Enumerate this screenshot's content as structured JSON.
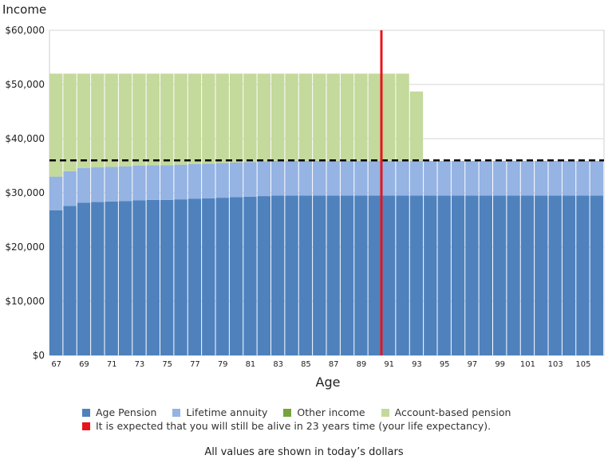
{
  "chart_data": {
    "type": "bar",
    "stacked": true,
    "title": "Income",
    "xlabel": "Age",
    "ylabel": "",
    "ylim": [
      0,
      60000
    ],
    "yticks": [
      "$0",
      "$10,000",
      "$20,000",
      "$30,000",
      "$40,000",
      "$50,000",
      "$60,000"
    ],
    "ytick_values": [
      0,
      10000,
      20000,
      30000,
      40000,
      50000,
      60000
    ],
    "grid": "horizontal",
    "x": [
      67,
      68,
      69,
      70,
      71,
      72,
      73,
      74,
      75,
      76,
      77,
      78,
      79,
      80,
      81,
      82,
      83,
      84,
      85,
      86,
      87,
      88,
      89,
      90,
      91,
      92,
      93,
      94,
      95,
      96,
      97,
      98,
      99,
      100,
      101,
      102,
      103,
      104,
      105,
      106
    ],
    "xtick_labels": [
      "67",
      "69",
      "71",
      "73",
      "75",
      "77",
      "79",
      "81",
      "83",
      "85",
      "87",
      "89",
      "91",
      "93",
      "95",
      "97",
      "99",
      "101",
      "103",
      "105"
    ],
    "xtick_values": [
      67,
      69,
      71,
      73,
      75,
      77,
      79,
      81,
      83,
      85,
      87,
      89,
      91,
      93,
      95,
      97,
      99,
      101,
      103,
      105
    ],
    "series": [
      {
        "name": "Age Pension",
        "color": "#4f81bd",
        "values": [
          26800,
          27600,
          28200,
          28300,
          28400,
          28500,
          28600,
          28700,
          28700,
          28800,
          28900,
          29000,
          29100,
          29200,
          29300,
          29400,
          29500,
          29500,
          29500,
          29500,
          29500,
          29500,
          29500,
          29500,
          29500,
          29500,
          29500,
          29500,
          29500,
          29500,
          29500,
          29500,
          29500,
          29500,
          29500,
          29500,
          29500,
          29500,
          29500,
          29500
        ]
      },
      {
        "name": "Lifetime annuity",
        "color": "#95b3e3",
        "values": [
          6200,
          6400,
          6400,
          6400,
          6400,
          6400,
          6400,
          6400,
          6400,
          6400,
          6400,
          6400,
          6400,
          6400,
          6400,
          6400,
          6400,
          6400,
          6400,
          6400,
          6400,
          6400,
          6400,
          6400,
          6400,
          6400,
          6400,
          6400,
          6400,
          6400,
          6400,
          6400,
          6400,
          6400,
          6400,
          6400,
          6400,
          6400,
          6400,
          6400
        ]
      },
      {
        "name": "Other income",
        "color": "#77a33c",
        "values": [
          0,
          0,
          0,
          0,
          0,
          0,
          0,
          0,
          0,
          0,
          0,
          0,
          0,
          0,
          0,
          0,
          0,
          0,
          0,
          0,
          0,
          0,
          0,
          0,
          0,
          0,
          0,
          0,
          0,
          0,
          0,
          0,
          0,
          0,
          0,
          0,
          0,
          0,
          0,
          0
        ]
      },
      {
        "name": "Account-based pension",
        "color": "#c4d99c",
        "values": [
          19000,
          18000,
          17400,
          17300,
          17200,
          17100,
          17000,
          16900,
          16900,
          16800,
          16700,
          16600,
          16500,
          16400,
          16300,
          16200,
          16100,
          16100,
          16100,
          16100,
          16100,
          16100,
          16100,
          16100,
          16100,
          16100,
          12800,
          0,
          0,
          0,
          0,
          0,
          0,
          0,
          0,
          0,
          0,
          0,
          0,
          0
        ]
      }
    ],
    "reference_line": {
      "type": "dashed",
      "value": 36000,
      "color": "#000000"
    },
    "life_expectancy_marker": {
      "x": 90,
      "color": "#e8141b",
      "label": "It is expected that you will still be alive in 23 years time (your life expectancy)."
    },
    "legend_position": "bottom",
    "footnote": "All values are shown in today’s dollars"
  }
}
